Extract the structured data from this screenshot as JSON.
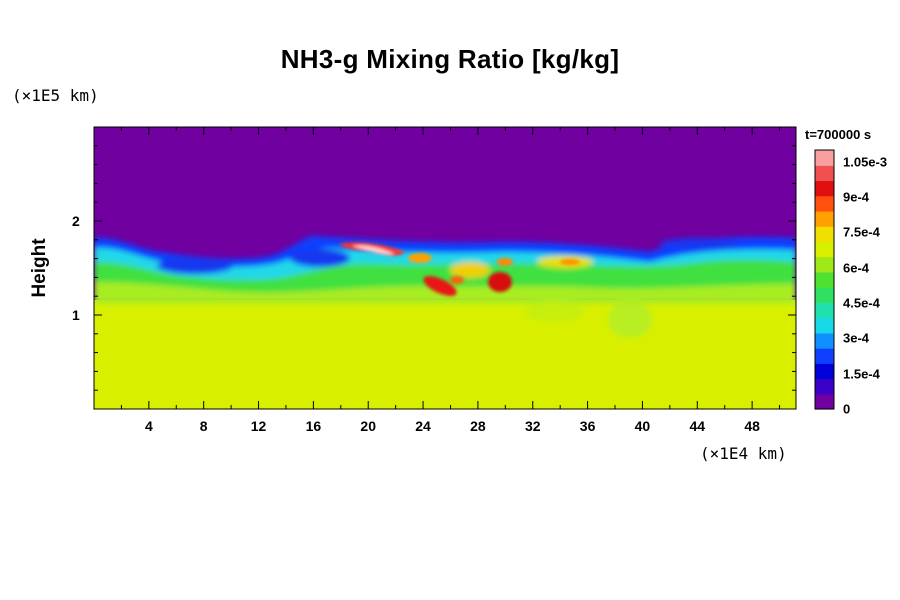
{
  "chart_data": {
    "type": "heatmap",
    "title": "NH3-g Mixing Ratio [kg/kg]",
    "ylabel": "Height",
    "y_unit_note": "(×1E5 km)",
    "x_unit_note": "(×1E4 km)",
    "time_label": "t=700000 s",
    "xlim": [
      0,
      51.2
    ],
    "ylim": [
      0,
      3.0
    ],
    "x_ticks": [
      "4",
      "8",
      "12",
      "16",
      "20",
      "24",
      "28",
      "32",
      "36",
      "40",
      "44",
      "48"
    ],
    "x_tick_values": [
      4,
      8,
      12,
      16,
      20,
      24,
      28,
      32,
      36,
      40,
      44,
      48
    ],
    "y_ticks": [
      "1",
      "2"
    ],
    "y_tick_values": [
      1,
      2
    ],
    "colorbar": {
      "range": [
        0,
        0.0011
      ],
      "labels": [
        "0",
        "1.5e-4",
        "3e-4",
        "4.5e-4",
        "6e-4",
        "7.5e-4",
        "9e-4",
        "1.05e-3"
      ],
      "label_values": [
        0,
        0.00015,
        0.0003,
        0.00045,
        0.0006,
        0.00075,
        0.0009,
        0.00105
      ]
    },
    "field_summary": {
      "upper_region_value": 0,
      "lower_region_value": 0.00077,
      "cloud_layer_height_range": [
        1.3,
        1.85
      ],
      "peak_value": 0.0011
    },
    "colors": {
      "background_purple": "#7000a0",
      "lower_yellow": "#d8f000",
      "blue": "#1040ff",
      "cyan": "#20e0e0",
      "green": "#30e040",
      "red": "#e01010"
    }
  }
}
